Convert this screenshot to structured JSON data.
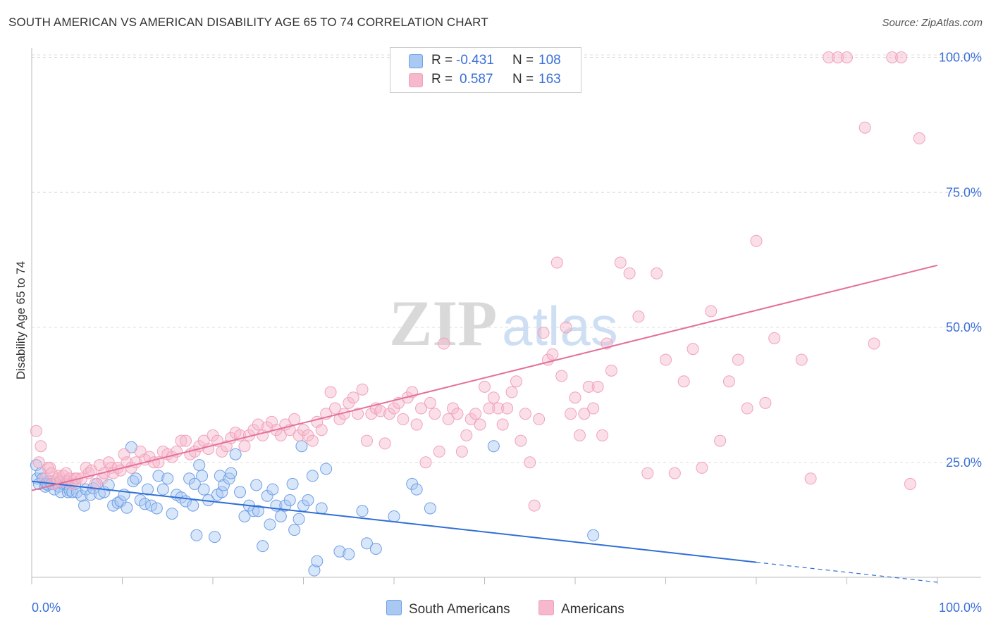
{
  "title": "SOUTH AMERICAN VS AMERICAN DISABILITY AGE 65 TO 74 CORRELATION CHART",
  "source": "Source: ZipAtlas.com",
  "watermark": "ZIPatlas",
  "legend": {
    "rows": [
      {
        "r_label": "R =",
        "r_value": "-0.431",
        "n_label": "N =",
        "n_value": "108",
        "color": "#a9c8f2"
      },
      {
        "r_label": "R =",
        "r_value": "0.587",
        "n_label": "N =",
        "n_value": "163",
        "color": "#f6b8cb"
      }
    ]
  },
  "bottom_legend": {
    "south_americans": "South Americans",
    "americans": "Americans"
  },
  "chart_data": {
    "type": "scatter",
    "title": "SOUTH AMERICAN VS AMERICAN DISABILITY AGE 65 TO 74 CORRELATION CHART",
    "ylabel": "Disability Age 65 to 74",
    "xlabel": "",
    "xlim": [
      0,
      100
    ],
    "ylim": [
      0,
      100
    ],
    "x_tick_labels": [
      "0.0%",
      "100.0%"
    ],
    "y_tick_labels": [
      "25.0%",
      "50.0%",
      "75.0%",
      "100.0%"
    ],
    "y_ticks": [
      25,
      50,
      75,
      100
    ],
    "grid": true,
    "legend_position": "top-center",
    "series": [
      {
        "name": "South Americans",
        "color": "#6f9fe6",
        "fill": "#a9c8f2",
        "line_color": "#2f6fd6",
        "trend": {
          "x0": 0,
          "y0": 21.5,
          "x1": 80,
          "y1": 6.5,
          "dash_to_x": 100,
          "dash_to_y": 2.8
        },
        "points": [
          [
            0.5,
            24.5
          ],
          [
            0.6,
            22
          ],
          [
            0.8,
            21
          ],
          [
            1,
            23
          ],
          [
            1.2,
            22
          ],
          [
            1.5,
            20.5
          ],
          [
            1.6,
            21
          ],
          [
            1.8,
            20.8
          ],
          [
            2,
            21.5
          ],
          [
            2.2,
            21
          ],
          [
            2.5,
            20
          ],
          [
            2.8,
            21.2
          ],
          [
            3,
            20.5
          ],
          [
            3.2,
            19.5
          ],
          [
            3.5,
            21
          ],
          [
            3.8,
            21
          ],
          [
            4,
            19.5
          ],
          [
            4.2,
            19.8
          ],
          [
            4.5,
            19.5
          ],
          [
            4.8,
            21
          ],
          [
            5,
            19.5
          ],
          [
            5.5,
            18.8
          ],
          [
            5.8,
            17
          ],
          [
            6,
            20
          ],
          [
            6.5,
            19
          ],
          [
            6.8,
            20.2
          ],
          [
            7.2,
            21
          ],
          [
            7.5,
            19.2
          ],
          [
            8,
            19.5
          ],
          [
            8.5,
            20.8
          ],
          [
            9,
            17
          ],
          [
            9.5,
            17.5
          ],
          [
            9.8,
            17.8
          ],
          [
            10.2,
            19
          ],
          [
            10.5,
            16.6
          ],
          [
            11,
            27.8
          ],
          [
            11.2,
            21.5
          ],
          [
            11.5,
            22
          ],
          [
            12,
            18
          ],
          [
            12.5,
            17.3
          ],
          [
            12.8,
            20
          ],
          [
            13.2,
            17
          ],
          [
            13.8,
            16.5
          ],
          [
            14,
            22.5
          ],
          [
            14.5,
            20
          ],
          [
            15,
            22
          ],
          [
            15.5,
            15.5
          ],
          [
            16,
            19
          ],
          [
            16.5,
            18.5
          ],
          [
            17,
            17.8
          ],
          [
            17.4,
            22
          ],
          [
            17.8,
            17
          ],
          [
            18,
            21
          ],
          [
            18.2,
            11.5
          ],
          [
            18.5,
            24.5
          ],
          [
            18.8,
            22.5
          ],
          [
            19,
            20
          ],
          [
            19.5,
            18
          ],
          [
            20.2,
            11.2
          ],
          [
            20.5,
            19
          ],
          [
            20.8,
            22.5
          ],
          [
            21,
            19.5
          ],
          [
            21.2,
            20.8
          ],
          [
            21.8,
            22
          ],
          [
            22,
            23
          ],
          [
            22.5,
            26.5
          ],
          [
            23,
            19.5
          ],
          [
            23.5,
            15
          ],
          [
            24,
            17
          ],
          [
            24.5,
            16
          ],
          [
            24.8,
            20.8
          ],
          [
            25,
            16
          ],
          [
            25.5,
            9.5
          ],
          [
            26,
            18.8
          ],
          [
            26.3,
            13.5
          ],
          [
            26.6,
            20
          ],
          [
            27,
            17
          ],
          [
            27.5,
            15
          ],
          [
            28,
            17
          ],
          [
            28.5,
            18
          ],
          [
            28.8,
            21
          ],
          [
            29,
            12.5
          ],
          [
            29.5,
            14.5
          ],
          [
            29.8,
            28
          ],
          [
            30,
            17
          ],
          [
            30.5,
            18
          ],
          [
            31,
            22.5
          ],
          [
            31.2,
            5
          ],
          [
            31.5,
            6.7
          ],
          [
            32,
            16.5
          ],
          [
            32.5,
            23.8
          ],
          [
            34,
            8.5
          ],
          [
            35,
            8
          ],
          [
            36.5,
            16
          ],
          [
            37,
            10
          ],
          [
            38,
            9
          ],
          [
            40,
            15
          ],
          [
            42,
            21
          ],
          [
            42.5,
            20
          ],
          [
            44,
            16.5
          ],
          [
            51,
            28
          ],
          [
            62,
            11.5
          ]
        ]
      },
      {
        "name": "Americans",
        "color": "#f0a2b9",
        "fill": "#f6b8cb",
        "line_color": "#e3709a",
        "trend": {
          "x0": 0,
          "y0": 19.8,
          "x1": 100,
          "y1": 61.5
        },
        "points": [
          [
            0.5,
            30.8
          ],
          [
            0.8,
            25
          ],
          [
            1,
            28
          ],
          [
            1.5,
            22
          ],
          [
            1.8,
            24
          ],
          [
            2,
            24
          ],
          [
            2.2,
            23
          ],
          [
            2.5,
            21
          ],
          [
            2.8,
            22
          ],
          [
            3,
            22.5
          ],
          [
            3.2,
            21.5
          ],
          [
            3.5,
            22.5
          ],
          [
            3.8,
            23
          ],
          [
            4,
            21.5
          ],
          [
            4.2,
            22
          ],
          [
            4.5,
            21
          ],
          [
            4.8,
            22
          ],
          [
            5,
            22
          ],
          [
            5.5,
            22
          ],
          [
            6,
            24
          ],
          [
            6.3,
            23
          ],
          [
            6.6,
            23.5
          ],
          [
            7,
            21
          ],
          [
            7.5,
            24.5
          ],
          [
            7.8,
            22
          ],
          [
            8,
            23
          ],
          [
            8.5,
            25
          ],
          [
            8.8,
            24
          ],
          [
            9,
            23
          ],
          [
            9.5,
            24
          ],
          [
            9.8,
            23.5
          ],
          [
            10.2,
            26.5
          ],
          [
            10.5,
            25
          ],
          [
            11,
            24
          ],
          [
            11.5,
            25
          ],
          [
            12,
            27
          ],
          [
            12.5,
            25.5
          ],
          [
            13,
            26
          ],
          [
            13.5,
            25
          ],
          [
            14,
            25
          ],
          [
            14.5,
            27
          ],
          [
            15,
            26.5
          ],
          [
            15.5,
            26
          ],
          [
            16,
            27
          ],
          [
            16.5,
            29
          ],
          [
            17,
            29
          ],
          [
            17.5,
            26.5
          ],
          [
            18,
            27
          ],
          [
            18.5,
            28
          ],
          [
            19,
            29
          ],
          [
            19.5,
            27.5
          ],
          [
            20,
            30
          ],
          [
            20.5,
            29
          ],
          [
            21,
            27
          ],
          [
            21.5,
            28
          ],
          [
            22,
            29.5
          ],
          [
            22.5,
            30.5
          ],
          [
            23,
            30
          ],
          [
            23.5,
            28
          ],
          [
            24,
            30
          ],
          [
            24.5,
            31
          ],
          [
            25,
            32
          ],
          [
            25.5,
            30
          ],
          [
            26,
            31.5
          ],
          [
            26.5,
            32.5
          ],
          [
            27,
            31
          ],
          [
            27.5,
            30
          ],
          [
            28,
            32
          ],
          [
            28.5,
            31
          ],
          [
            29,
            33
          ],
          [
            29.5,
            30
          ],
          [
            30,
            31
          ],
          [
            30.5,
            30
          ],
          [
            31,
            29
          ],
          [
            31.5,
            32.5
          ],
          [
            32,
            31
          ],
          [
            32.5,
            34
          ],
          [
            33,
            38
          ],
          [
            33.5,
            35
          ],
          [
            34,
            33
          ],
          [
            34.5,
            34
          ],
          [
            35,
            36
          ],
          [
            35.5,
            37
          ],
          [
            36,
            34
          ],
          [
            36.5,
            38.5
          ],
          [
            37,
            29
          ],
          [
            37.5,
            34
          ],
          [
            38,
            35
          ],
          [
            38.5,
            34.5
          ],
          [
            39,
            28.5
          ],
          [
            39.5,
            34
          ],
          [
            40,
            35
          ],
          [
            40.5,
            36
          ],
          [
            41,
            33
          ],
          [
            41.5,
            37
          ],
          [
            42,
            38
          ],
          [
            42.5,
            32
          ],
          [
            43,
            35
          ],
          [
            43.5,
            25
          ],
          [
            44,
            36
          ],
          [
            44.5,
            34
          ],
          [
            45,
            27
          ],
          [
            45.5,
            47
          ],
          [
            46,
            33
          ],
          [
            46.5,
            35
          ],
          [
            47,
            34
          ],
          [
            47.5,
            27
          ],
          [
            48,
            30
          ],
          [
            48.5,
            33
          ],
          [
            49,
            34
          ],
          [
            49.5,
            32
          ],
          [
            50,
            39
          ],
          [
            50.5,
            35
          ],
          [
            51,
            37
          ],
          [
            51.5,
            35
          ],
          [
            52,
            32
          ],
          [
            52.5,
            35
          ],
          [
            53,
            38
          ],
          [
            53.5,
            40
          ],
          [
            54,
            29
          ],
          [
            54.5,
            34
          ],
          [
            55,
            25
          ],
          [
            55.5,
            17
          ],
          [
            56,
            33
          ],
          [
            56.5,
            49
          ],
          [
            57,
            44
          ],
          [
            57.5,
            45
          ],
          [
            58,
            62
          ],
          [
            58.5,
            41
          ],
          [
            59,
            50
          ],
          [
            59.5,
            34
          ],
          [
            60,
            37
          ],
          [
            60.5,
            30
          ],
          [
            61,
            34
          ],
          [
            61.5,
            39
          ],
          [
            62,
            35
          ],
          [
            62.5,
            39
          ],
          [
            63,
            30
          ],
          [
            63.5,
            47
          ],
          [
            64,
            42
          ],
          [
            65,
            62
          ],
          [
            66,
            60
          ],
          [
            67,
            52
          ],
          [
            68,
            23
          ],
          [
            69,
            60
          ],
          [
            70,
            44
          ],
          [
            71,
            23
          ],
          [
            72,
            40
          ],
          [
            73,
            46
          ],
          [
            74,
            24
          ],
          [
            75,
            53
          ],
          [
            76,
            29
          ],
          [
            77,
            40
          ],
          [
            78,
            44
          ],
          [
            79,
            35
          ],
          [
            80,
            66
          ],
          [
            81,
            36
          ],
          [
            82,
            48
          ],
          [
            85,
            44
          ],
          [
            86,
            22
          ],
          [
            88,
            100
          ],
          [
            89,
            100
          ],
          [
            90,
            100
          ],
          [
            92,
            87
          ],
          [
            93,
            47
          ],
          [
            95,
            100
          ],
          [
            96,
            100
          ],
          [
            97,
            21
          ],
          [
            98,
            85
          ]
        ]
      }
    ]
  }
}
